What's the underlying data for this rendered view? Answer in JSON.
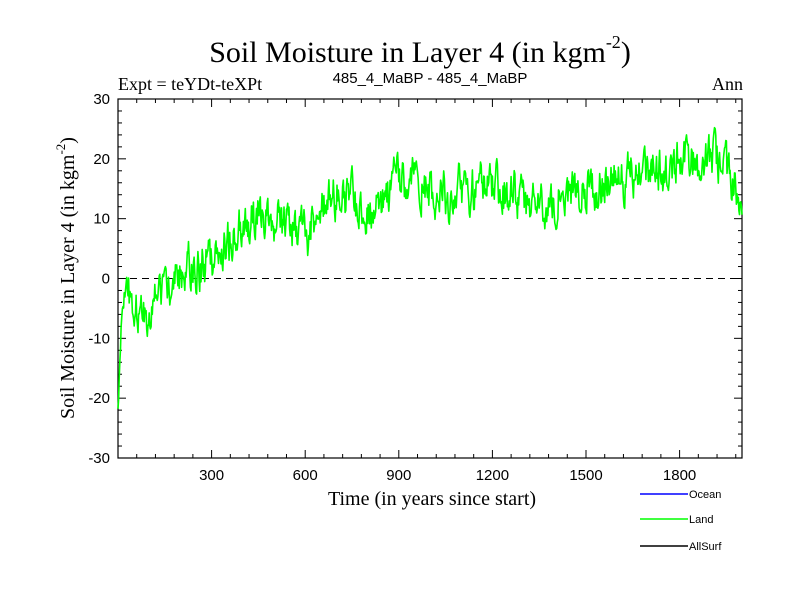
{
  "chart_data": {
    "type": "line",
    "title": "Soil Moisture in Layer 4 (in kgm",
    "title_exponent": "-2",
    "title_close": ")",
    "subtitle_left": "Expt = teYDt-teXPt",
    "subtitle_center": "485_4_MaBP - 485_4_MaBP",
    "subtitle_right": "Ann",
    "xlabel": "Time (in years since start)",
    "ylabel": "Soil Moisture in Layer 4 (in kgm",
    "ylabel_exponent": "-2",
    "ylabel_close": ")",
    "xlim": [
      0,
      2000
    ],
    "ylim": [
      -30,
      30
    ],
    "xticks": [
      300,
      600,
      900,
      1200,
      1500,
      1800
    ],
    "xtick_labels": [
      "300",
      "600",
      "900",
      "1200",
      "1500",
      "1800"
    ],
    "yticks": [
      -30,
      -20,
      -10,
      0,
      10,
      20,
      30
    ],
    "ytick_labels": [
      "-30",
      "-20",
      "-10",
      "0",
      "10",
      "20",
      "30"
    ],
    "zero_line": "dashed",
    "legend_position": "bottom-right",
    "series": [
      {
        "name": "Ocean",
        "color": "#0000ff",
        "x": [],
        "y": []
      },
      {
        "name": "Land",
        "color": "#00ff00",
        "x": [
          0,
          10,
          20,
          30,
          40,
          60,
          80,
          100,
          130,
          160,
          200,
          250,
          300,
          350,
          400,
          450,
          500,
          550,
          600,
          650,
          700,
          750,
          800,
          850,
          900,
          950,
          1000,
          1050,
          1100,
          1150,
          1200,
          1250,
          1300,
          1350,
          1400,
          1450,
          1500,
          1550,
          1600,
          1650,
          1700,
          1750,
          1800,
          1850,
          1900,
          1950,
          2000
        ],
        "y": [
          -22,
          -12,
          -6,
          -4,
          -3,
          -5,
          -7,
          -5,
          -2,
          0,
          1,
          2,
          3,
          6,
          9,
          11,
          10,
          9,
          7,
          12,
          14,
          13,
          12,
          14,
          17,
          16,
          15,
          14,
          15,
          15,
          15,
          14,
          13,
          12,
          14,
          15,
          15,
          16,
          16,
          17,
          19,
          18,
          20,
          19,
          20,
          18,
          14
        ]
      },
      {
        "name": "AllSurf",
        "color": "#000000",
        "x": [],
        "y": []
      }
    ]
  }
}
